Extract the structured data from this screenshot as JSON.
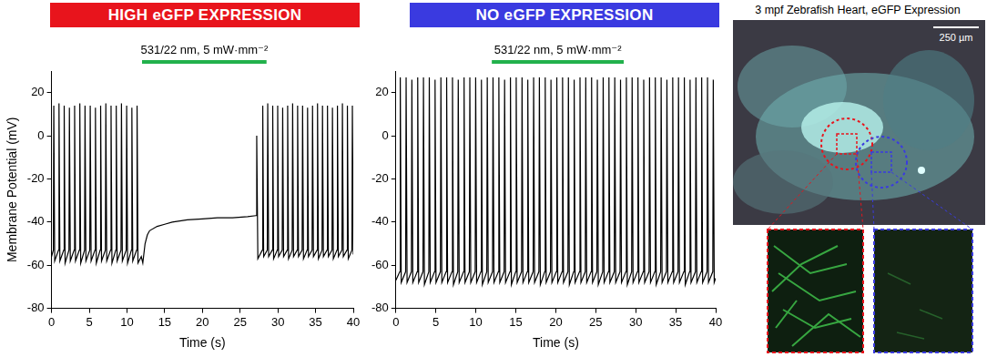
{
  "chart_data": [
    {
      "type": "line",
      "title": "HIGH eGFP EXPRESSION",
      "x_label": "Time (s)",
      "y_label": "Membrane Potential (mV)",
      "color": "#000000",
      "grid": false,
      "xlim": [
        0,
        40
      ],
      "xticks": [
        0,
        5,
        10,
        15,
        20,
        25,
        30,
        35,
        40
      ],
      "ylim": [
        -80,
        30
      ],
      "yticks": [
        -80,
        -60,
        -40,
        -20,
        0,
        20
      ],
      "annotations": [
        {
          "text": "531/22 nm, 5 mW·mm⁻²",
          "x_start": 12,
          "x_end": 28.5,
          "color": "#22b14c"
        }
      ],
      "x": [
        0,
        0.24,
        0.3,
        0.42,
        0.93,
        0.99,
        1.11,
        1.62,
        1.68,
        1.8,
        2.31,
        2.37,
        2.49,
        3.0,
        3.06,
        3.18,
        3.69,
        3.75,
        3.87,
        4.38,
        4.44,
        4.56,
        5.07,
        5.13,
        5.25,
        5.76,
        5.82,
        5.94,
        6.45,
        6.51,
        6.63,
        7.14,
        7.2,
        7.32,
        7.83,
        7.89,
        8.01,
        8.52,
        8.58,
        8.7,
        9.21,
        9.27,
        9.39,
        9.9,
        9.96,
        10.08,
        10.59,
        10.65,
        10.77,
        11.28,
        11.34,
        11.46,
        11.9,
        12.1,
        12.4,
        12.7,
        13,
        14,
        15,
        16,
        18,
        20,
        22,
        24,
        26,
        27.1,
        27.2,
        27.35,
        27.94,
        28.0,
        28.12,
        28.6,
        28.66,
        28.78,
        29.26,
        29.32,
        29.44,
        29.92,
        29.98,
        30.1,
        30.58,
        30.64,
        30.76,
        31.24,
        31.3,
        31.42,
        31.9,
        31.96,
        32.08,
        32.56,
        32.62,
        32.74,
        33.22,
        33.28,
        33.4,
        33.88,
        33.94,
        34.06,
        34.54,
        34.6,
        34.72,
        35.2,
        35.26,
        35.38,
        35.86,
        35.92,
        36.04,
        36.52,
        36.58,
        36.7,
        37.18,
        37.24,
        37.36,
        37.84,
        37.9,
        38.02,
        38.5,
        38.56,
        38.68,
        39.16,
        39.22,
        39.34,
        39.82,
        39.88,
        40.0
      ],
      "values": [
        -56,
        -53,
        14,
        -58,
        -53,
        15,
        -58,
        -53,
        14,
        -59,
        -53,
        13,
        -58,
        -53,
        14,
        -58,
        -53,
        15,
        -59,
        -53,
        14,
        -58,
        -53,
        14,
        -58,
        -53,
        13,
        -59,
        -53,
        14,
        -58,
        -53,
        15,
        -58,
        -53,
        14,
        -59,
        -53,
        14,
        -58,
        -53,
        15,
        -58,
        -53,
        14,
        -59,
        -53,
        13,
        -58,
        -53,
        14,
        -59,
        -56,
        -59,
        -50,
        -46,
        -44,
        -42,
        -41,
        -40,
        -39,
        -38.5,
        -38,
        -38,
        -37.5,
        -37,
        0,
        -57,
        -53,
        14,
        -56,
        -53,
        15,
        -56,
        -53,
        14,
        -57,
        -53,
        14,
        -56,
        -53,
        13,
        -56,
        -53,
        14,
        -57,
        -53,
        15,
        -56,
        -53,
        14,
        -56,
        -53,
        14,
        -57,
        -53,
        13,
        -56,
        -53,
        14,
        -56,
        -53,
        15,
        -57,
        -53,
        14,
        -56,
        -53,
        14,
        -56,
        -53,
        13,
        -57,
        -53,
        14,
        -56,
        -53,
        15,
        -56,
        -53,
        14,
        -57,
        -53,
        14,
        -55
      ]
    },
    {
      "type": "line",
      "title": "NO eGFP EXPRESSION",
      "x_label": "Time (s)",
      "color": "#000000",
      "grid": false,
      "xlim": [
        0,
        40
      ],
      "xticks": [
        0,
        5,
        10,
        15,
        20,
        25,
        30,
        35,
        40
      ],
      "ylim": [
        -80,
        30
      ],
      "yticks": [
        -80,
        -60,
        -40,
        -20,
        0,
        20
      ],
      "annotations": [
        {
          "text": "531/22 nm, 5 mW·mm⁻²",
          "x_start": 12,
          "x_end": 28.5,
          "color": "#22b14c"
        }
      ],
      "x": [
        0,
        0.49,
        0.55,
        0.67,
        1.22,
        1.28,
        1.4,
        1.94,
        2.0,
        2.12,
        2.67,
        2.73,
        2.85,
        3.39,
        3.45,
        3.57,
        4.12,
        4.18,
        4.3,
        4.84,
        4.9,
        5.02,
        5.57,
        5.63,
        5.75,
        6.29,
        6.35,
        6.47,
        7.02,
        7.08,
        7.2,
        7.74,
        7.8,
        7.92,
        8.47,
        8.53,
        8.65,
        9.19,
        9.25,
        9.37,
        9.92,
        9.98,
        10.1,
        10.64,
        10.7,
        10.82,
        11.37,
        11.43,
        11.55,
        12.09,
        12.15,
        12.27,
        12.82,
        12.88,
        13.0,
        13.54,
        13.6,
        13.72,
        14.27,
        14.33,
        14.45,
        14.99,
        15.05,
        15.17,
        15.72,
        15.78,
        15.9,
        16.44,
        16.5,
        16.62,
        17.17,
        17.23,
        17.35,
        17.89,
        17.95,
        18.07,
        18.62,
        18.68,
        18.8,
        19.34,
        19.4,
        19.52,
        20.07,
        20.13,
        20.25,
        20.79,
        20.85,
        20.97,
        21.52,
        21.58,
        21.7,
        22.24,
        22.3,
        22.42,
        22.97,
        23.03,
        23.15,
        23.69,
        23.75,
        23.87,
        24.42,
        24.48,
        24.6,
        25.14,
        25.2,
        25.32,
        25.87,
        25.93,
        26.05,
        26.59,
        26.65,
        26.77,
        27.32,
        27.38,
        27.5,
        28.04,
        28.1,
        28.22,
        28.77,
        28.83,
        28.95,
        29.49,
        29.55,
        29.67,
        30.22,
        30.28,
        30.4,
        30.94,
        31.0,
        31.12,
        31.67,
        31.73,
        31.85,
        32.39,
        32.45,
        32.57,
        33.12,
        33.18,
        33.3,
        33.84,
        33.9,
        34.02,
        34.57,
        34.63,
        34.75,
        35.29,
        35.35,
        35.47,
        36.02,
        36.08,
        36.2,
        36.74,
        36.8,
        36.92,
        37.47,
        37.53,
        37.65,
        38.19,
        38.25,
        38.37,
        38.92,
        38.98,
        39.1,
        39.64,
        39.7,
        39.82,
        40
      ],
      "values": [
        -67,
        -63,
        27,
        -68,
        -63,
        27,
        -68,
        -63,
        26,
        -68,
        -63,
        27,
        -68,
        -63,
        27,
        -69,
        -63,
        27,
        -68,
        -63,
        26,
        -68,
        -63,
        27,
        -68,
        -63,
        27,
        -68,
        -63,
        27,
        -69,
        -63,
        26,
        -68,
        -63,
        27,
        -68,
        -63,
        27,
        -68,
        -63,
        27,
        -68,
        -63,
        26,
        -69,
        -63,
        27,
        -68,
        -63,
        27,
        -68,
        -63,
        27,
        -68,
        -63,
        26,
        -68,
        -63,
        27,
        -69,
        -63,
        27,
        -68,
        -63,
        27,
        -68,
        -63,
        26,
        -68,
        -63,
        27,
        -68,
        -63,
        27,
        -69,
        -63,
        27,
        -68,
        -63,
        26,
        -68,
        -63,
        27,
        -68,
        -63,
        27,
        -68,
        -63,
        27,
        -69,
        -63,
        26,
        -68,
        -63,
        27,
        -68,
        -63,
        27,
        -68,
        -63,
        27,
        -68,
        -63,
        26,
        -69,
        -63,
        27,
        -68,
        -63,
        27,
        -68,
        -63,
        27,
        -68,
        -63,
        26,
        -68,
        -63,
        27,
        -69,
        -63,
        27,
        -68,
        -63,
        27,
        -68,
        -63,
        26,
        -68,
        -63,
        27,
        -68,
        -63,
        27,
        -69,
        -63,
        27,
        -68,
        -63,
        26,
        -68,
        -63,
        27,
        -68,
        -63,
        27,
        -68,
        -63,
        27,
        -69,
        -63,
        26,
        -68,
        -63,
        27,
        -68,
        -63,
        27,
        -68,
        -63,
        27,
        -68,
        -63,
        26,
        -68,
        -66
      ]
    }
  ],
  "image_panel": {
    "title": "3 mpf Zebrafish Heart, eGFP Expression",
    "scale_bar": "250 µm"
  }
}
